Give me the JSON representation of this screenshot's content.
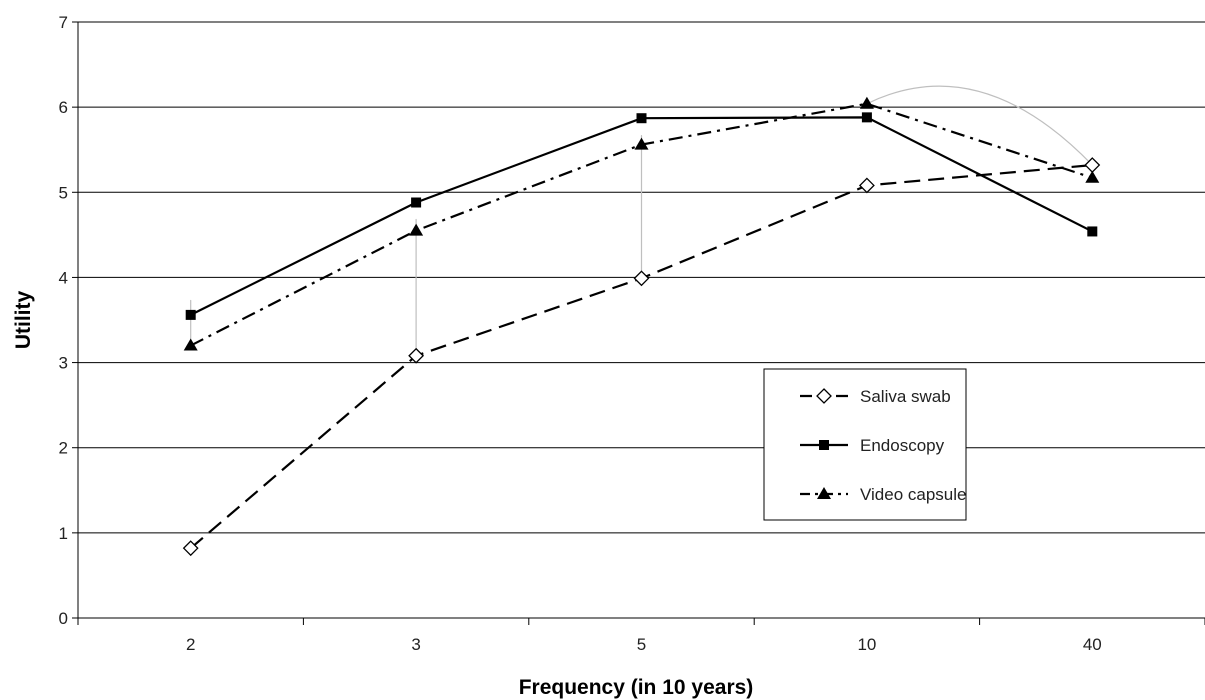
{
  "chart_data": {
    "type": "line",
    "xlabel": "Frequency (in 10 years)",
    "ylabel": "Utility",
    "categories": [
      "2",
      "3",
      "5",
      "10",
      "40"
    ],
    "ylim": [
      0,
      7
    ],
    "yticks": [
      0,
      1,
      2,
      3,
      4,
      5,
      6,
      7
    ],
    "grid": true,
    "legend_position": "lower-right",
    "series": [
      {
        "name": "Saliva swab",
        "values": [
          0.82,
          3.08,
          3.99,
          5.08,
          5.32
        ],
        "marker": "diamond-open",
        "line": "dashed",
        "color": "#000000"
      },
      {
        "name": "Endoscopy",
        "values": [
          3.56,
          4.88,
          5.87,
          5.88,
          4.54
        ],
        "marker": "square-filled",
        "line": "solid",
        "color": "#000000"
      },
      {
        "name": "Video capsule",
        "values": [
          3.2,
          4.55,
          5.56,
          6.04,
          5.17
        ],
        "marker": "triangle-filled",
        "line": "dash-dot",
        "color": "#000000"
      }
    ]
  }
}
